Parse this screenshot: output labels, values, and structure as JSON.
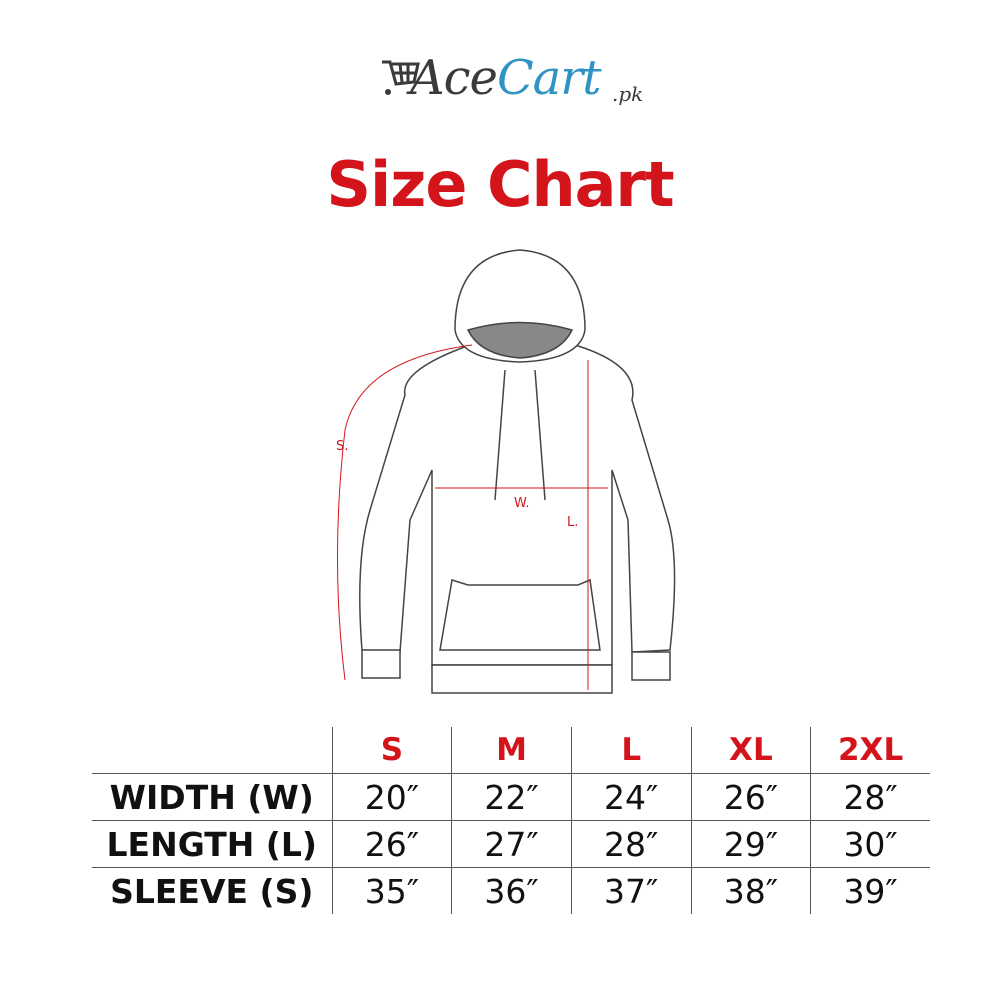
{
  "brand": {
    "name_part1": "Ace",
    "name_part2": "Cart",
    "suffix": ".pk",
    "accent": "#2f93c4"
  },
  "title": "Size Chart",
  "title_color": "#d3151b",
  "diagram": {
    "labels": {
      "sleeve": "S.",
      "width": "W.",
      "length": "L."
    }
  },
  "table": {
    "sizes": [
      "S",
      "M",
      "L",
      "XL",
      "2XL"
    ],
    "rows": [
      {
        "label": "WIDTH (W)",
        "values": [
          "20″",
          "22″",
          "24″",
          "26″",
          "28″"
        ]
      },
      {
        "label": "LENGTH (L)",
        "values": [
          "26″",
          "27″",
          "28″",
          "29″",
          "30″"
        ]
      },
      {
        "label": "SLEEVE (S)",
        "values": [
          "35″",
          "36″",
          "37″",
          "38″",
          "39″"
        ]
      }
    ]
  }
}
